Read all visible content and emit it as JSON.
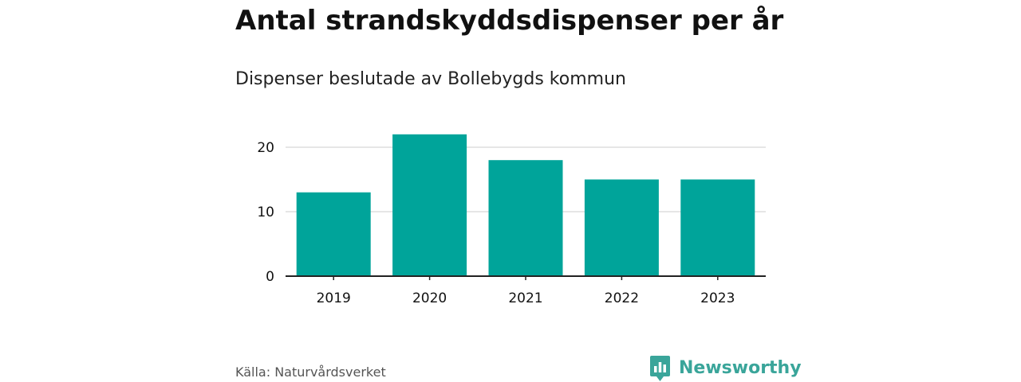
{
  "title": "Antal strandskyddsdispenser per år",
  "subtitle": "Dispenser beslutade av Bollebygds kommun",
  "source": "Källa: Naturvårdsverket",
  "brand": {
    "name": "Newsworthy",
    "icon": "newsworthy-logo-icon",
    "color": "#3aa59a"
  },
  "colors": {
    "bar": "#00a49a",
    "grid": "#dddddd",
    "axis": "#222222",
    "text": "#111111"
  },
  "chart_data": {
    "type": "bar",
    "title": "Antal strandskyddsdispenser per år",
    "subtitle": "Dispenser beslutade av Bollebygds kommun",
    "categories": [
      "2019",
      "2020",
      "2021",
      "2022",
      "2023"
    ],
    "values": [
      13,
      22,
      18,
      15,
      15
    ],
    "xlabel": "",
    "ylabel": "",
    "ylim": [
      0,
      25
    ],
    "yticks": [
      0,
      10,
      20
    ],
    "grid": true,
    "legend": "none"
  }
}
